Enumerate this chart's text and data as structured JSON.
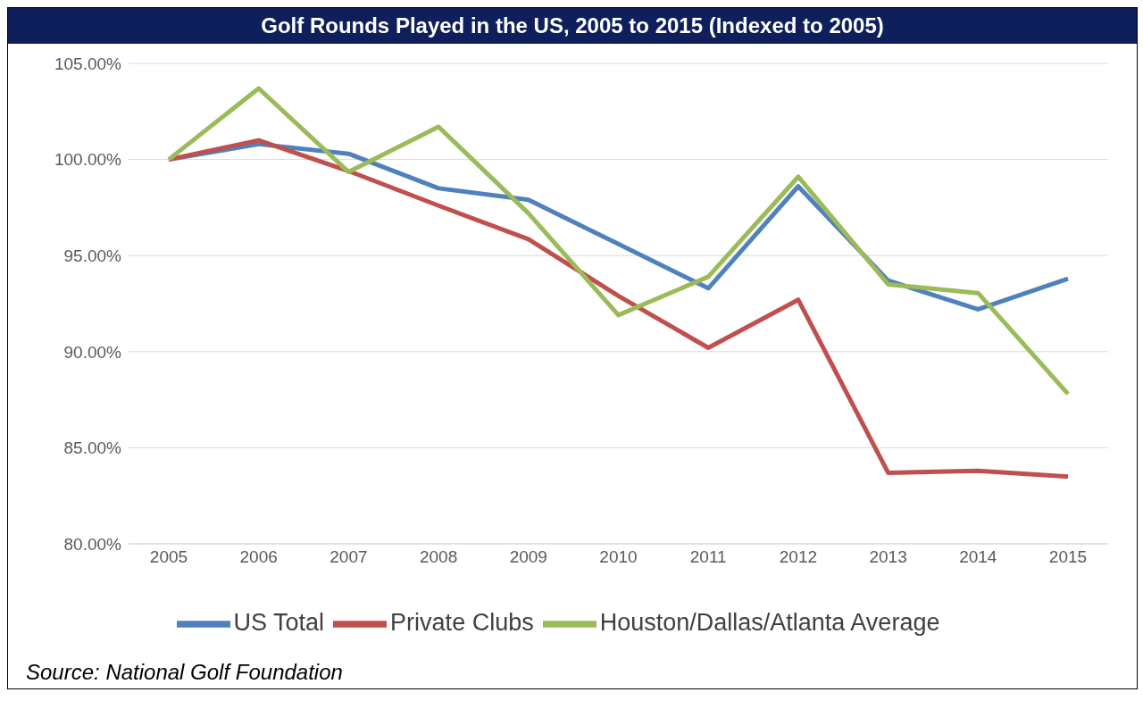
{
  "chart_data": {
    "type": "line",
    "title": "Golf Rounds Played in the US, 2005 to 2015 (Indexed to 2005)",
    "categories": [
      "2005",
      "2006",
      "2007",
      "2008",
      "2009",
      "2010",
      "2011",
      "2012",
      "2013",
      "2014",
      "2015"
    ],
    "series": [
      {
        "name": "US Total",
        "color": "#4f81bd",
        "values": [
          100,
          100.8,
          100.3,
          98.5,
          97.9,
          95.6,
          93.3,
          98.6,
          93.7,
          92.2,
          93.8
        ]
      },
      {
        "name": "Private Clubs",
        "color": "#c0504d",
        "values": [
          100,
          101.0,
          99.4,
          97.6,
          95.85,
          92.9,
          90.2,
          92.7,
          83.7,
          83.8,
          83.5
        ]
      },
      {
        "name": "Houston/Dallas/Atlanta Average",
        "color": "#9bbb59",
        "values": [
          100,
          103.7,
          99.35,
          101.7,
          97.2,
          91.9,
          93.9,
          99.1,
          93.5,
          93.05,
          87.8
        ]
      }
    ],
    "ylim": [
      80,
      105
    ],
    "yticks": [
      {
        "value": 80,
        "label": "80.00%"
      },
      {
        "value": 85,
        "label": "85.00%"
      },
      {
        "value": 90,
        "label": "90.00%"
      },
      {
        "value": 95,
        "label": "95.00%"
      },
      {
        "value": 100,
        "label": "100.00%"
      },
      {
        "value": 105,
        "label": "105.00%"
      }
    ],
    "grid": "y",
    "legend": "bottom",
    "marker": "none",
    "line_style": "solid",
    "annotations": [
      "Source: National Golf Foundation"
    ]
  }
}
